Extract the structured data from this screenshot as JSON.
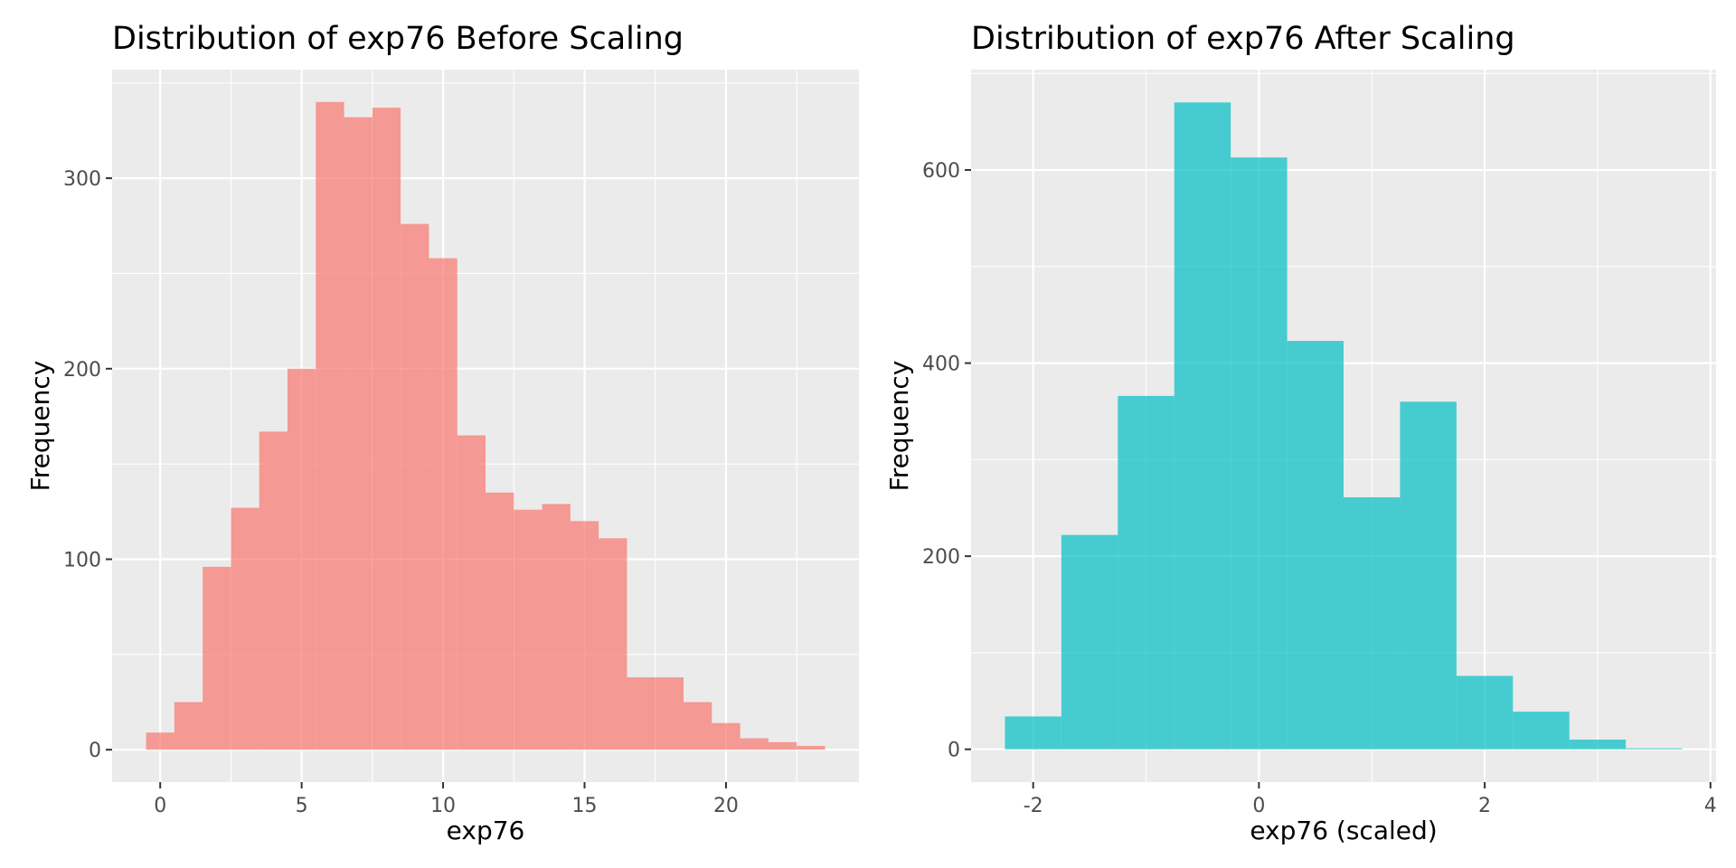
{
  "chart_data": [
    {
      "type": "bar",
      "subtype": "histogram",
      "title": "Distribution of exp76 Before Scaling",
      "xlabel": "exp76",
      "ylabel": "Frequency",
      "fill_color": "#F8766D",
      "fill_opacity": 0.7,
      "panel_background": "#EBEBEB",
      "grid": true,
      "xlim": [
        -1.7,
        24.7
      ],
      "ylim": [
        -17,
        357
      ],
      "x_ticks": [
        0,
        5,
        10,
        15,
        20
      ],
      "x_tick_labels": [
        "0",
        "5",
        "10",
        "15",
        "20"
      ],
      "y_ticks": [
        0,
        100,
        200,
        300
      ],
      "y_tick_labels": [
        "0",
        "100",
        "200",
        "300"
      ],
      "bin_width": 1,
      "bin_starts": [
        -0.5,
        0.5,
        1.5,
        2.5,
        3.5,
        4.5,
        5.5,
        6.5,
        7.5,
        8.5,
        9.5,
        10.5,
        11.5,
        12.5,
        13.5,
        14.5,
        15.5,
        16.5,
        17.5,
        18.5,
        19.5,
        20.5,
        21.5,
        22.5
      ],
      "values": [
        9,
        25,
        96,
        127,
        167,
        200,
        340,
        332,
        337,
        276,
        258,
        165,
        135,
        126,
        129,
        120,
        111,
        38,
        38,
        25,
        14,
        6,
        4,
        2
      ]
    },
    {
      "type": "bar",
      "subtype": "histogram",
      "title": "Distribution of exp76 After Scaling",
      "xlabel": "exp76 (scaled)",
      "ylabel": "Frequency",
      "fill_color": "#00BFC4",
      "fill_opacity": 0.7,
      "panel_background": "#EBEBEB",
      "grid": true,
      "xlim": [
        -2.55,
        4.05
      ],
      "ylim": [
        -34,
        704
      ],
      "x_ticks": [
        -2,
        0,
        2,
        4
      ],
      "x_tick_labels": [
        "-2",
        "0",
        "2",
        "4"
      ],
      "y_ticks": [
        0,
        200,
        400,
        600
      ],
      "y_tick_labels": [
        "0",
        "200",
        "400",
        "600"
      ],
      "bin_width": 0.5,
      "bin_starts": [
        -2.25,
        -1.75,
        -1.25,
        -0.75,
        -0.25,
        0.25,
        0.75,
        1.25,
        1.75,
        2.25,
        2.75,
        3.25
      ],
      "values": [
        34,
        222,
        366,
        670,
        613,
        423,
        261,
        360,
        76,
        39,
        10,
        1
      ]
    }
  ]
}
